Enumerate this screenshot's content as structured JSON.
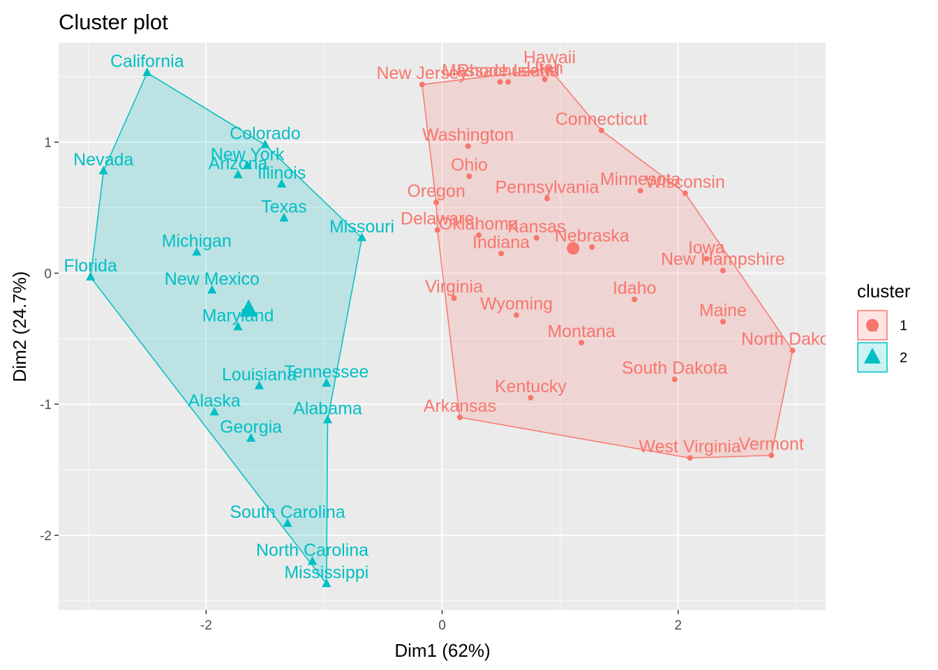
{
  "title": "Cluster plot",
  "chart_data": {
    "type": "scatter",
    "title": "Cluster plot",
    "xlabel": "Dim1 (62%)",
    "ylabel": "Dim2 (24.7%)",
    "xlim": [
      -3.25,
      3.25
    ],
    "ylim": [
      -2.57,
      1.76
    ],
    "x_ticks": [
      -2,
      0,
      2
    ],
    "x_tick_labels": [
      "-2",
      "0",
      "2"
    ],
    "y_ticks": [
      -2,
      -1,
      0,
      1
    ],
    "y_tick_labels": [
      "-2",
      "-1",
      "0",
      "1"
    ],
    "grid": true,
    "legend": {
      "title": "cluster",
      "position": "right",
      "entries": [
        "1",
        "2"
      ]
    },
    "colors": {
      "1": "#F8766D",
      "2": "#00BFC4"
    },
    "series": [
      {
        "name": "1",
        "shape": "circle",
        "hull": [
          "New Jersey",
          "Hawaii",
          "Connecticut",
          "Wisconsin",
          "North Dakota",
          "Vermont",
          "West Virginia",
          "Arkansas",
          "Delaware",
          "Oregon"
        ],
        "center": [
          1.11,
          0.19
        ],
        "points": [
          {
            "label": "New Jersey",
            "x": -0.17,
            "y": 1.44
          },
          {
            "label": "Massachusetts",
            "x": 0.49,
            "y": 1.46
          },
          {
            "label": "Rhode Island",
            "x": 0.56,
            "y": 1.46
          },
          {
            "label": "Hawaii",
            "x": 0.91,
            "y": 1.56
          },
          {
            "label": "Utah",
            "x": 0.87,
            "y": 1.48
          },
          {
            "label": "Connecticut",
            "x": 1.35,
            "y": 1.09
          },
          {
            "label": "Washington",
            "x": 0.22,
            "y": 0.97
          },
          {
            "label": "Ohio",
            "x": 0.23,
            "y": 0.74
          },
          {
            "label": "Pennsylvania",
            "x": 0.89,
            "y": 0.57
          },
          {
            "label": "Minnesota",
            "x": 1.68,
            "y": 0.63
          },
          {
            "label": "Wisconsin",
            "x": 2.06,
            "y": 0.61
          },
          {
            "label": "Oregon",
            "x": -0.05,
            "y": 0.54
          },
          {
            "label": "Delaware",
            "x": -0.04,
            "y": 0.33
          },
          {
            "label": "Oklahoma",
            "x": 0.31,
            "y": 0.29
          },
          {
            "label": "Kansas",
            "x": 0.8,
            "y": 0.27
          },
          {
            "label": "Nebraska",
            "x": 1.27,
            "y": 0.2
          },
          {
            "label": "Indiana",
            "x": 0.5,
            "y": 0.15
          },
          {
            "label": "Iowa",
            "x": 2.24,
            "y": 0.11
          },
          {
            "label": "New Hampshire",
            "x": 2.38,
            "y": 0.02
          },
          {
            "label": "Virginia",
            "x": 0.1,
            "y": -0.19
          },
          {
            "label": "Idaho",
            "x": 1.63,
            "y": -0.2
          },
          {
            "label": "Wyoming",
            "x": 0.63,
            "y": -0.32
          },
          {
            "label": "Maine",
            "x": 2.38,
            "y": -0.37
          },
          {
            "label": "Montana",
            "x": 1.18,
            "y": -0.53
          },
          {
            "label": "North Dakota",
            "x": 2.97,
            "y": -0.59
          },
          {
            "label": "South Dakota",
            "x": 1.97,
            "y": -0.81
          },
          {
            "label": "Kentucky",
            "x": 0.75,
            "y": -0.95
          },
          {
            "label": "Arkansas",
            "x": 0.15,
            "y": -1.1
          },
          {
            "label": "West Virginia",
            "x": 2.1,
            "y": -1.41
          },
          {
            "label": "Vermont",
            "x": 2.79,
            "y": -1.39
          }
        ]
      },
      {
        "name": "2",
        "shape": "triangle",
        "hull": [
          "California",
          "Colorado",
          "Missouri",
          "Alabama",
          "Mississippi",
          "Florida",
          "Nevada"
        ],
        "center": [
          -1.64,
          -0.28
        ],
        "points": [
          {
            "label": "California",
            "x": -2.5,
            "y": 1.53
          },
          {
            "label": "Nevada",
            "x": -2.87,
            "y": 0.78
          },
          {
            "label": "Colorado",
            "x": -1.5,
            "y": 0.98
          },
          {
            "label": "New York",
            "x": -1.65,
            "y": 0.82
          },
          {
            "label": "Arizona",
            "x": -1.73,
            "y": 0.75
          },
          {
            "label": "Illinois",
            "x": -1.36,
            "y": 0.68
          },
          {
            "label": "Texas",
            "x": -1.34,
            "y": 0.42
          },
          {
            "label": "Missouri",
            "x": -0.68,
            "y": 0.27
          },
          {
            "label": "Michigan",
            "x": -2.08,
            "y": 0.16
          },
          {
            "label": "Florida",
            "x": -2.98,
            "y": -0.03
          },
          {
            "label": "New Mexico",
            "x": -1.95,
            "y": -0.13
          },
          {
            "label": "Maryland",
            "x": -1.73,
            "y": -0.41
          },
          {
            "label": "Louisiana",
            "x": -1.55,
            "y": -0.86
          },
          {
            "label": "Tennessee",
            "x": -0.98,
            "y": -0.84
          },
          {
            "label": "Alaska",
            "x": -1.93,
            "y": -1.06
          },
          {
            "label": "Alabama",
            "x": -0.97,
            "y": -1.12
          },
          {
            "label": "Georgia",
            "x": -1.62,
            "y": -1.26
          },
          {
            "label": "South Carolina",
            "x": -1.31,
            "y": -1.91
          },
          {
            "label": "North Carolina",
            "x": -1.1,
            "y": -2.2
          },
          {
            "label": "Mississippi",
            "x": -0.98,
            "y": -2.37
          }
        ]
      }
    ]
  }
}
